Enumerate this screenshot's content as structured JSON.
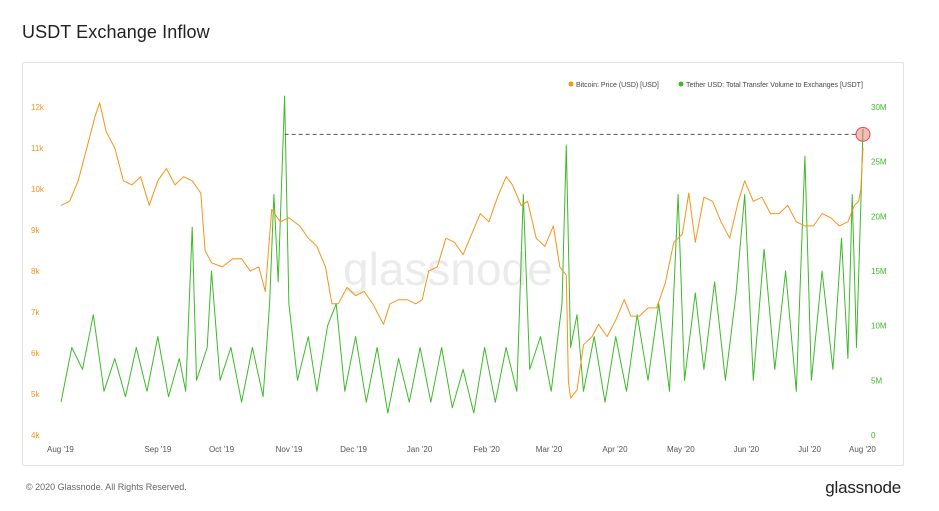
{
  "page": {
    "title": "USDT Exchange Inflow",
    "copyright": "© 2020 Glassnode. All Rights Reserved.",
    "brand": "glassnode",
    "watermark": "glassnode"
  },
  "chart_data": {
    "type": "line",
    "title": "USDT Exchange Inflow",
    "x_tick_labels": [
      "Aug '19",
      "Sep '19",
      "Oct '19",
      "Nov '19",
      "Dec '19",
      "Jan '20",
      "Feb '20",
      "Mar '20",
      "Apr '20",
      "May '20",
      "Jun '20",
      "Jul '20",
      "Aug '20"
    ],
    "x_range": [
      "2019-07-20",
      "2020-07-27"
    ],
    "y_left": {
      "ticks": [
        "4k",
        "5k",
        "6k",
        "7k",
        "8k",
        "9k",
        "10k",
        "11k",
        "12k"
      ],
      "range": [
        4000,
        12000
      ]
    },
    "y_right": {
      "ticks": [
        "0",
        "5M",
        "10M",
        "15M",
        "20M",
        "25M",
        "30M"
      ],
      "range": [
        0,
        30000000
      ]
    },
    "legend": {
      "placement": "top-right"
    },
    "colors": {
      "btc": "#f7931a",
      "usdt": "#3dba2a",
      "marker": "#e86a6a"
    },
    "series": [
      {
        "name": "Bitcoin: Price (USD) [USD]",
        "axis": "left",
        "color": "#f7931a",
        "points": [
          [
            "2019-07-20",
            9600
          ],
          [
            "2019-07-24",
            9700
          ],
          [
            "2019-07-28",
            10200
          ],
          [
            "2019-08-01",
            11000
          ],
          [
            "2019-08-05",
            11800
          ],
          [
            "2019-08-07",
            12100
          ],
          [
            "2019-08-10",
            11400
          ],
          [
            "2019-08-14",
            11000
          ],
          [
            "2019-08-18",
            10200
          ],
          [
            "2019-08-22",
            10100
          ],
          [
            "2019-08-26",
            10300
          ],
          [
            "2019-08-30",
            9600
          ],
          [
            "2019-09-03",
            10200
          ],
          [
            "2019-09-07",
            10500
          ],
          [
            "2019-09-11",
            10100
          ],
          [
            "2019-09-15",
            10300
          ],
          [
            "2019-09-19",
            10200
          ],
          [
            "2019-09-23",
            9900
          ],
          [
            "2019-09-25",
            8500
          ],
          [
            "2019-09-28",
            8200
          ],
          [
            "2019-10-03",
            8100
          ],
          [
            "2019-10-08",
            8300
          ],
          [
            "2019-10-12",
            8300
          ],
          [
            "2019-10-16",
            8000
          ],
          [
            "2019-10-20",
            8100
          ],
          [
            "2019-10-23",
            7500
          ],
          [
            "2019-10-26",
            9500
          ],
          [
            "2019-10-30",
            9200
          ],
          [
            "2019-11-03",
            9300
          ],
          [
            "2019-11-08",
            9100
          ],
          [
            "2019-11-12",
            8800
          ],
          [
            "2019-11-16",
            8600
          ],
          [
            "2019-11-20",
            8100
          ],
          [
            "2019-11-23",
            7200
          ],
          [
            "2019-11-26",
            7200
          ],
          [
            "2019-11-30",
            7600
          ],
          [
            "2019-12-04",
            7400
          ],
          [
            "2019-12-08",
            7500
          ],
          [
            "2019-12-12",
            7200
          ],
          [
            "2019-12-17",
            6700
          ],
          [
            "2019-12-20",
            7200
          ],
          [
            "2019-12-24",
            7300
          ],
          [
            "2019-12-28",
            7300
          ],
          [
            "2020-01-01",
            7200
          ],
          [
            "2020-01-04",
            7300
          ],
          [
            "2020-01-07",
            8000
          ],
          [
            "2020-01-11",
            8100
          ],
          [
            "2020-01-15",
            8800
          ],
          [
            "2020-01-19",
            8700
          ],
          [
            "2020-01-23",
            8400
          ],
          [
            "2020-01-27",
            8900
          ],
          [
            "2020-01-31",
            9400
          ],
          [
            "2020-02-04",
            9200
          ],
          [
            "2020-02-08",
            9800
          ],
          [
            "2020-02-12",
            10300
          ],
          [
            "2020-02-15",
            10100
          ],
          [
            "2020-02-19",
            9600
          ],
          [
            "2020-02-22",
            9700
          ],
          [
            "2020-02-26",
            8800
          ],
          [
            "2020-03-01",
            8600
          ],
          [
            "2020-03-05",
            9100
          ],
          [
            "2020-03-08",
            8100
          ],
          [
            "2020-03-11",
            7900
          ],
          [
            "2020-03-12",
            5300
          ],
          [
            "2020-03-13",
            4900
          ],
          [
            "2020-03-16",
            5100
          ],
          [
            "2020-03-19",
            6200
          ],
          [
            "2020-03-23",
            6400
          ],
          [
            "2020-03-26",
            6700
          ],
          [
            "2020-03-30",
            6400
          ],
          [
            "2020-04-03",
            6800
          ],
          [
            "2020-04-07",
            7300
          ],
          [
            "2020-04-10",
            6900
          ],
          [
            "2020-04-14",
            6900
          ],
          [
            "2020-04-18",
            7100
          ],
          [
            "2020-04-22",
            7100
          ],
          [
            "2020-04-26",
            7700
          ],
          [
            "2020-04-30",
            8700
          ],
          [
            "2020-05-04",
            8900
          ],
          [
            "2020-05-07",
            9900
          ],
          [
            "2020-05-10",
            8700
          ],
          [
            "2020-05-14",
            9800
          ],
          [
            "2020-05-18",
            9700
          ],
          [
            "2020-05-22",
            9200
          ],
          [
            "2020-05-26",
            8800
          ],
          [
            "2020-05-30",
            9700
          ],
          [
            "2020-06-02",
            10200
          ],
          [
            "2020-06-06",
            9700
          ],
          [
            "2020-06-10",
            9800
          ],
          [
            "2020-06-14",
            9400
          ],
          [
            "2020-06-18",
            9400
          ],
          [
            "2020-06-22",
            9600
          ],
          [
            "2020-06-26",
            9200
          ],
          [
            "2020-06-30",
            9100
          ],
          [
            "2020-07-04",
            9100
          ],
          [
            "2020-07-08",
            9400
          ],
          [
            "2020-07-12",
            9300
          ],
          [
            "2020-07-16",
            9100
          ],
          [
            "2020-07-20",
            9200
          ],
          [
            "2020-07-23",
            9600
          ],
          [
            "2020-07-25",
            9700
          ],
          [
            "2020-07-26",
            10000
          ],
          [
            "2020-07-27",
            11000
          ]
        ]
      },
      {
        "name": "Tether USD: Total Transfer Volume to Exchanges [USDT]",
        "axis": "right",
        "color": "#3dba2a",
        "points": [
          [
            "2019-07-20",
            3000000
          ],
          [
            "2019-07-25",
            8000000
          ],
          [
            "2019-07-30",
            6000000
          ],
          [
            "2019-08-04",
            11000000
          ],
          [
            "2019-08-09",
            4000000
          ],
          [
            "2019-08-14",
            7000000
          ],
          [
            "2019-08-19",
            3500000
          ],
          [
            "2019-08-24",
            8000000
          ],
          [
            "2019-08-29",
            4000000
          ],
          [
            "2019-09-03",
            9000000
          ],
          [
            "2019-09-08",
            3500000
          ],
          [
            "2019-09-13",
            7000000
          ],
          [
            "2019-09-16",
            4000000
          ],
          [
            "2019-09-19",
            19000000
          ],
          [
            "2019-09-21",
            5000000
          ],
          [
            "2019-09-26",
            8000000
          ],
          [
            "2019-09-28",
            15000000
          ],
          [
            "2019-10-02",
            5000000
          ],
          [
            "2019-10-07",
            8000000
          ],
          [
            "2019-10-12",
            3000000
          ],
          [
            "2019-10-17",
            8000000
          ],
          [
            "2019-10-22",
            3500000
          ],
          [
            "2019-10-25",
            12000000
          ],
          [
            "2019-10-27",
            22000000
          ],
          [
            "2019-10-29",
            14000000
          ],
          [
            "2019-11-01",
            31000000
          ],
          [
            "2019-11-03",
            12000000
          ],
          [
            "2019-11-07",
            5000000
          ],
          [
            "2019-11-12",
            9000000
          ],
          [
            "2019-11-16",
            4000000
          ],
          [
            "2019-11-21",
            10000000
          ],
          [
            "2019-11-25",
            12000000
          ],
          [
            "2019-11-29",
            4000000
          ],
          [
            "2019-12-04",
            9000000
          ],
          [
            "2019-12-09",
            3000000
          ],
          [
            "2019-12-14",
            8000000
          ],
          [
            "2019-12-19",
            2000000
          ],
          [
            "2019-12-24",
            7000000
          ],
          [
            "2019-12-29",
            3000000
          ],
          [
            "2020-01-03",
            8000000
          ],
          [
            "2020-01-08",
            3000000
          ],
          [
            "2020-01-13",
            8000000
          ],
          [
            "2020-01-18",
            2500000
          ],
          [
            "2020-01-23",
            6000000
          ],
          [
            "2020-01-28",
            2000000
          ],
          [
            "2020-02-02",
            8000000
          ],
          [
            "2020-02-07",
            3000000
          ],
          [
            "2020-02-12",
            8000000
          ],
          [
            "2020-02-17",
            4000000
          ],
          [
            "2020-02-20",
            22000000
          ],
          [
            "2020-02-23",
            6000000
          ],
          [
            "2020-02-28",
            9000000
          ],
          [
            "2020-03-04",
            4000000
          ],
          [
            "2020-03-09",
            12000000
          ],
          [
            "2020-03-11",
            26500000
          ],
          [
            "2020-03-13",
            8000000
          ],
          [
            "2020-03-16",
            11000000
          ],
          [
            "2020-03-19",
            4000000
          ],
          [
            "2020-03-24",
            9000000
          ],
          [
            "2020-03-29",
            3000000
          ],
          [
            "2020-04-03",
            9000000
          ],
          [
            "2020-04-08",
            4000000
          ],
          [
            "2020-04-13",
            11000000
          ],
          [
            "2020-04-18",
            5000000
          ],
          [
            "2020-04-23",
            12000000
          ],
          [
            "2020-04-28",
            4000000
          ],
          [
            "2020-05-02",
            22000000
          ],
          [
            "2020-05-05",
            5000000
          ],
          [
            "2020-05-10",
            13000000
          ],
          [
            "2020-05-14",
            6000000
          ],
          [
            "2020-05-19",
            14000000
          ],
          [
            "2020-05-24",
            5000000
          ],
          [
            "2020-05-29",
            13000000
          ],
          [
            "2020-06-02",
            22000000
          ],
          [
            "2020-06-06",
            5000000
          ],
          [
            "2020-06-11",
            17000000
          ],
          [
            "2020-06-16",
            6000000
          ],
          [
            "2020-06-21",
            15000000
          ],
          [
            "2020-06-26",
            4000000
          ],
          [
            "2020-06-30",
            25500000
          ],
          [
            "2020-07-03",
            5000000
          ],
          [
            "2020-07-08",
            15000000
          ],
          [
            "2020-07-13",
            6000000
          ],
          [
            "2020-07-17",
            18000000
          ],
          [
            "2020-07-20",
            7000000
          ],
          [
            "2020-07-22",
            22000000
          ],
          [
            "2020-07-24",
            8000000
          ],
          [
            "2020-07-26",
            21000000
          ],
          [
            "2020-07-27",
            28000000
          ]
        ]
      }
    ],
    "annotations": [
      {
        "type": "dashed-line",
        "from": "2019-11-01",
        "to": "2020-07-27",
        "value": 27500000,
        "axis": "right"
      },
      {
        "type": "circle",
        "date": "2020-07-27",
        "value": 27500000,
        "axis": "right"
      }
    ]
  }
}
